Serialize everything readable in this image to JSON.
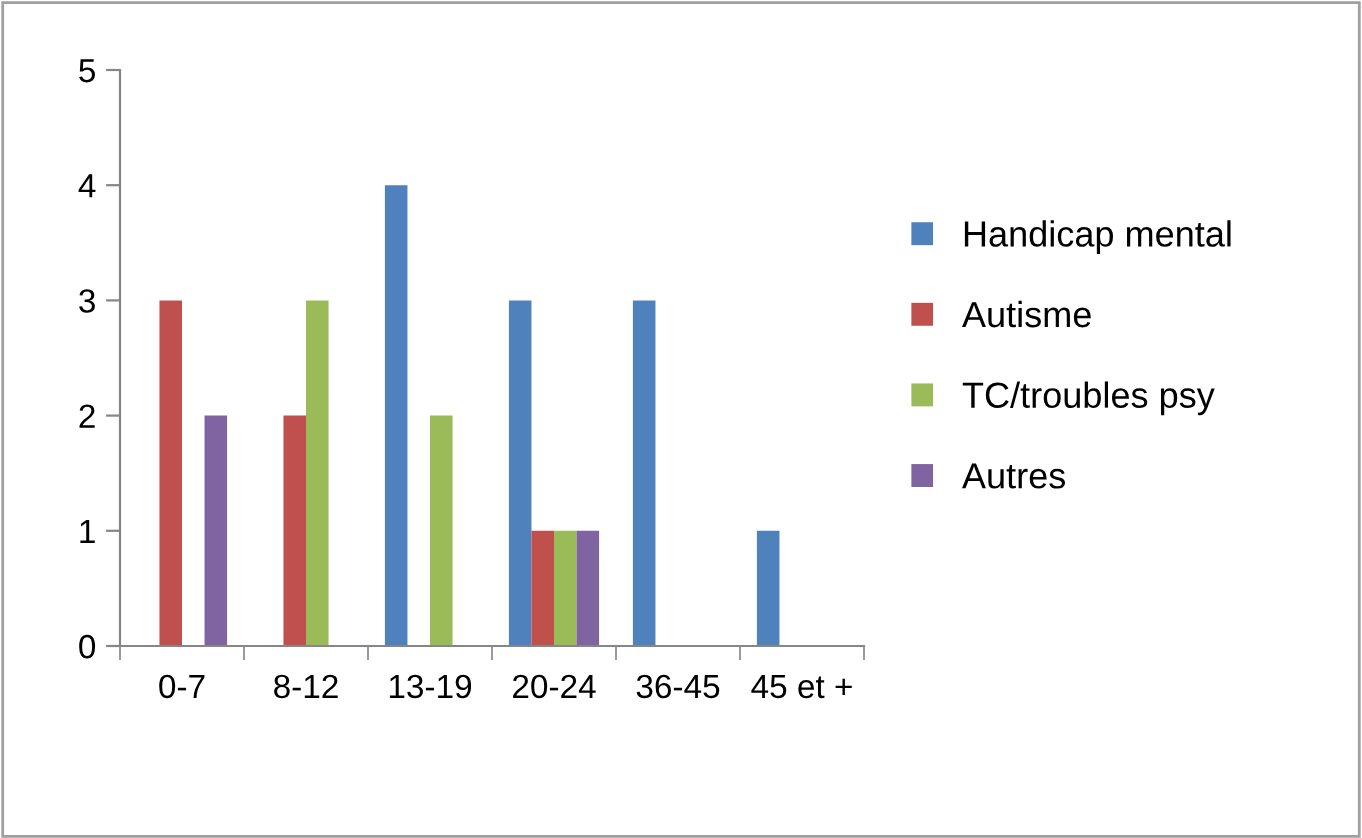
{
  "chart_data": {
    "type": "bar",
    "categories": [
      "0-7",
      "8-12",
      "13-19",
      "20-24",
      "36-45",
      "45 et +"
    ],
    "series": [
      {
        "name": "Handicap mental",
        "color": "#4f81bd",
        "values": [
          null,
          null,
          4,
          3,
          3,
          1
        ]
      },
      {
        "name": "Autisme",
        "color": "#c0504d",
        "values": [
          3,
          2,
          null,
          1,
          null,
          null
        ]
      },
      {
        "name": "TC/troubles psy",
        "color": "#9bbb59",
        "values": [
          null,
          3,
          2,
          1,
          null,
          null
        ]
      },
      {
        "name": "Autres",
        "color": "#8064a2",
        "values": [
          2,
          null,
          null,
          1,
          null,
          null
        ]
      }
    ],
    "ylim": [
      0,
      5
    ],
    "yticks": [
      0,
      1,
      2,
      3,
      4,
      5
    ],
    "grid": false,
    "legend": "right"
  }
}
